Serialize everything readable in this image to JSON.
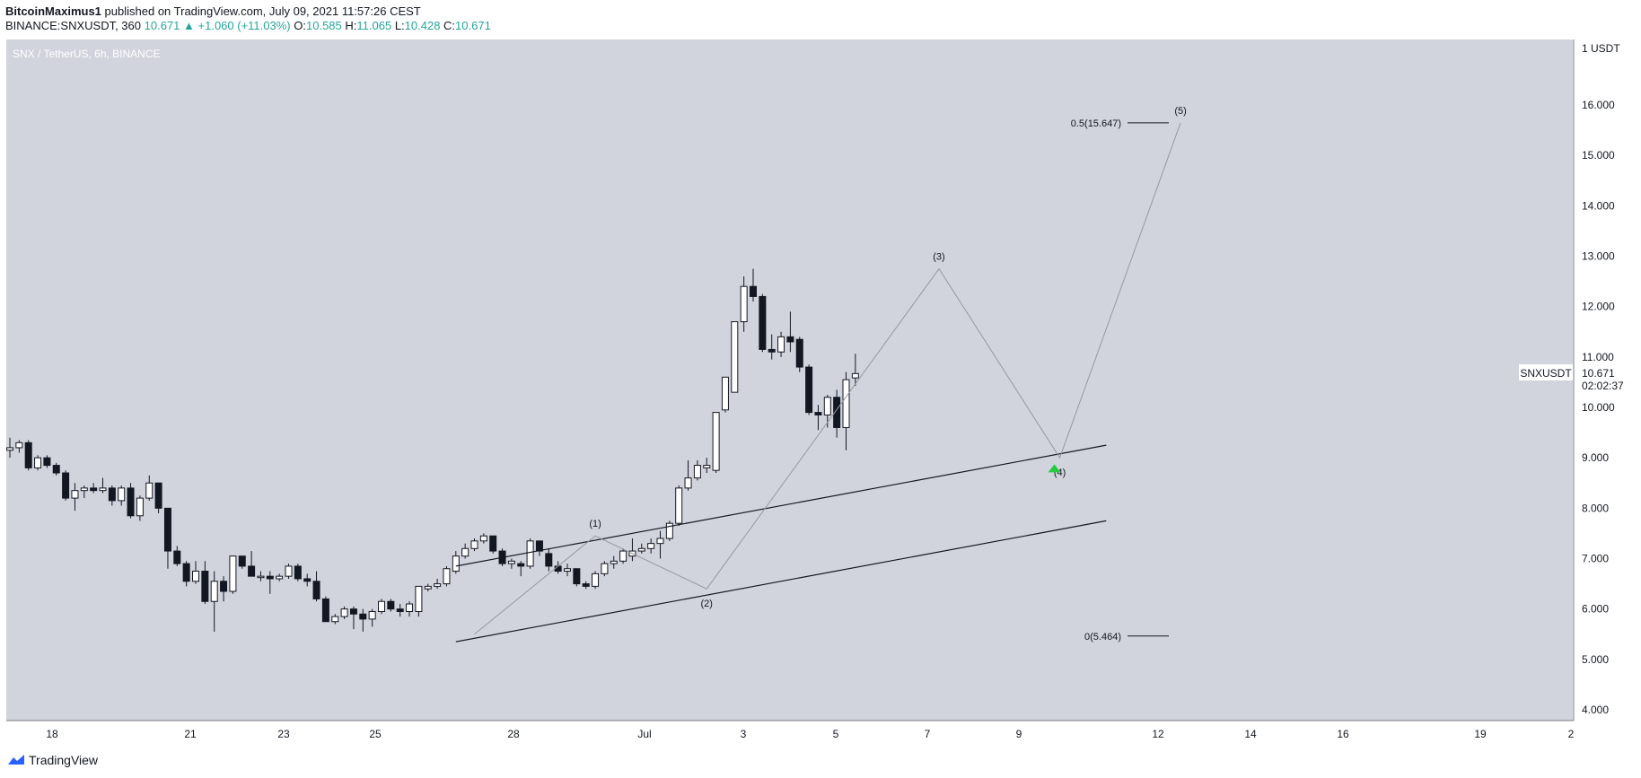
{
  "header": {
    "author": "BitcoinMaximus1",
    "published": "published on TradingView.com, July 09, 2021 11:57:26 CEST",
    "symbol": "BINANCE:SNXUSDT, 360",
    "last": "10.671",
    "change_arrow": "▲",
    "change": "+1.060 (+11.03%)",
    "o_label": "O:",
    "o": "10.585",
    "h_label": "H:",
    "h": "11.065",
    "l_label": "L:",
    "l": "10.428",
    "c_label": "C:",
    "c": "10.671"
  },
  "pane_title": "SNX / TetherUS, 6h, BINANCE",
  "price_tag": {
    "symbol": "SNXUSDT",
    "price": "10.671",
    "countdown": "02:02:37"
  },
  "footer": {
    "brand": "TradingView"
  },
  "colors": {
    "background": "#d1d4dc",
    "bull_body": "#ffffff",
    "bear_body": "#131722",
    "wick": "#131722",
    "arrow": "#26c940"
  },
  "chart_data": {
    "type": "candlestick",
    "symbol": "SNXUSDT",
    "interval": "6h",
    "y_axis_unit": "USDT",
    "y_axis": {
      "min": 4.0,
      "max": 16.0,
      "ticks": [
        "1 USDT",
        "16.000",
        "15.000",
        "14.000",
        "13.000",
        "12.000",
        "11.000",
        "10.000",
        "9.000",
        "8.000",
        "7.000",
        "6.000",
        "5.000",
        "4.000"
      ]
    },
    "x_ticks": [
      "18",
      "21",
      "23",
      "25",
      "28",
      "Jul",
      "3",
      "5",
      "7",
      "9",
      "12",
      "14",
      "16",
      "19",
      "2"
    ],
    "candles": [
      {
        "o": 9.15,
        "h": 9.4,
        "l": 9.0,
        "c": 9.2
      },
      {
        "o": 9.2,
        "h": 9.35,
        "l": 9.1,
        "c": 9.3
      },
      {
        "o": 9.3,
        "h": 9.35,
        "l": 8.75,
        "c": 8.8
      },
      {
        "o": 8.8,
        "h": 9.05,
        "l": 8.75,
        "c": 9.0
      },
      {
        "o": 9.0,
        "h": 9.05,
        "l": 8.8,
        "c": 8.85
      },
      {
        "o": 8.85,
        "h": 8.9,
        "l": 8.65,
        "c": 8.7
      },
      {
        "o": 8.7,
        "h": 8.75,
        "l": 8.15,
        "c": 8.2
      },
      {
        "o": 8.2,
        "h": 8.5,
        "l": 7.95,
        "c": 8.35
      },
      {
        "o": 8.35,
        "h": 8.45,
        "l": 8.2,
        "c": 8.4
      },
      {
        "o": 8.4,
        "h": 8.5,
        "l": 8.3,
        "c": 8.35
      },
      {
        "o": 8.35,
        "h": 8.6,
        "l": 8.3,
        "c": 8.4
      },
      {
        "o": 8.4,
        "h": 8.45,
        "l": 8.05,
        "c": 8.15
      },
      {
        "o": 8.15,
        "h": 8.45,
        "l": 8.05,
        "c": 8.4
      },
      {
        "o": 8.4,
        "h": 8.5,
        "l": 7.8,
        "c": 7.85
      },
      {
        "o": 7.85,
        "h": 8.25,
        "l": 7.75,
        "c": 8.2
      },
      {
        "o": 8.2,
        "h": 8.65,
        "l": 8.15,
        "c": 8.5
      },
      {
        "o": 8.5,
        "h": 8.5,
        "l": 7.9,
        "c": 8.0
      },
      {
        "o": 8.0,
        "h": 8.0,
        "l": 6.8,
        "c": 7.15
      },
      {
        "o": 7.15,
        "h": 7.25,
        "l": 6.85,
        "c": 6.9
      },
      {
        "o": 6.9,
        "h": 6.95,
        "l": 6.45,
        "c": 6.55
      },
      {
        "o": 6.55,
        "h": 6.95,
        "l": 6.5,
        "c": 6.75
      },
      {
        "o": 6.75,
        "h": 6.95,
        "l": 6.1,
        "c": 6.15
      },
      {
        "o": 6.15,
        "h": 6.75,
        "l": 5.55,
        "c": 6.55
      },
      {
        "o": 6.55,
        "h": 6.65,
        "l": 6.15,
        "c": 6.35
      },
      {
        "o": 6.35,
        "h": 7.05,
        "l": 6.3,
        "c": 7.05
      },
      {
        "o": 7.05,
        "h": 7.05,
        "l": 6.8,
        "c": 6.85
      },
      {
        "o": 6.85,
        "h": 7.15,
        "l": 6.65,
        "c": 6.65
      },
      {
        "o": 6.65,
        "h": 6.75,
        "l": 6.55,
        "c": 6.65
      },
      {
        "o": 6.65,
        "h": 6.75,
        "l": 6.3,
        "c": 6.6
      },
      {
        "o": 6.6,
        "h": 6.7,
        "l": 6.55,
        "c": 6.65
      },
      {
        "o": 6.65,
        "h": 6.9,
        "l": 6.6,
        "c": 6.85
      },
      {
        "o": 6.85,
        "h": 6.9,
        "l": 6.55,
        "c": 6.6
      },
      {
        "o": 6.6,
        "h": 6.7,
        "l": 6.45,
        "c": 6.55
      },
      {
        "o": 6.55,
        "h": 6.75,
        "l": 6.15,
        "c": 6.2
      },
      {
        "o": 6.2,
        "h": 6.25,
        "l": 5.75,
        "c": 5.75
      },
      {
        "o": 5.75,
        "h": 5.9,
        "l": 5.7,
        "c": 5.85
      },
      {
        "o": 5.85,
        "h": 6.05,
        "l": 5.8,
        "c": 6.0
      },
      {
        "o": 6.0,
        "h": 6.05,
        "l": 5.6,
        "c": 5.9
      },
      {
        "o": 5.9,
        "h": 6.0,
        "l": 5.55,
        "c": 5.8
      },
      {
        "o": 5.8,
        "h": 6.0,
        "l": 5.65,
        "c": 5.95
      },
      {
        "o": 5.95,
        "h": 6.2,
        "l": 5.9,
        "c": 6.15
      },
      {
        "o": 6.15,
        "h": 6.2,
        "l": 5.95,
        "c": 6.0
      },
      {
        "o": 6.0,
        "h": 6.1,
        "l": 5.85,
        "c": 5.95
      },
      {
        "o": 5.95,
        "h": 6.15,
        "l": 5.85,
        "c": 6.1
      },
      {
        "o": 5.95,
        "h": 6.45,
        "l": 5.85,
        "c": 6.45
      },
      {
        "o": 6.4,
        "h": 6.5,
        "l": 6.35,
        "c": 6.45
      },
      {
        "o": 6.45,
        "h": 6.6,
        "l": 6.4,
        "c": 6.5
      },
      {
        "o": 6.5,
        "h": 6.85,
        "l": 6.45,
        "c": 6.8
      },
      {
        "o": 6.75,
        "h": 7.15,
        "l": 6.7,
        "c": 7.05
      },
      {
        "o": 7.05,
        "h": 7.3,
        "l": 7.0,
        "c": 7.2
      },
      {
        "o": 7.2,
        "h": 7.4,
        "l": 7.15,
        "c": 7.35
      },
      {
        "o": 7.35,
        "h": 7.5,
        "l": 7.3,
        "c": 7.45
      },
      {
        "o": 7.45,
        "h": 7.45,
        "l": 7.1,
        "c": 7.15
      },
      {
        "o": 7.15,
        "h": 7.2,
        "l": 6.85,
        "c": 6.9
      },
      {
        "o": 6.9,
        "h": 7.0,
        "l": 6.8,
        "c": 6.95
      },
      {
        "o": 6.9,
        "h": 6.95,
        "l": 6.65,
        "c": 6.85
      },
      {
        "o": 6.85,
        "h": 7.4,
        "l": 6.8,
        "c": 7.35
      },
      {
        "o": 7.35,
        "h": 7.35,
        "l": 7.05,
        "c": 7.15
      },
      {
        "o": 7.1,
        "h": 7.2,
        "l": 6.75,
        "c": 6.85
      },
      {
        "o": 6.85,
        "h": 6.95,
        "l": 6.7,
        "c": 6.75
      },
      {
        "o": 6.75,
        "h": 6.9,
        "l": 6.65,
        "c": 6.8
      },
      {
        "o": 6.8,
        "h": 6.8,
        "l": 6.45,
        "c": 6.5
      },
      {
        "o": 6.5,
        "h": 6.55,
        "l": 6.4,
        "c": 6.45
      },
      {
        "o": 6.45,
        "h": 6.75,
        "l": 6.4,
        "c": 6.7
      },
      {
        "o": 6.7,
        "h": 6.95,
        "l": 6.65,
        "c": 6.9
      },
      {
        "o": 6.9,
        "h": 7.05,
        "l": 6.8,
        "c": 6.95
      },
      {
        "o": 6.95,
        "h": 7.2,
        "l": 6.9,
        "c": 7.15
      },
      {
        "o": 7.05,
        "h": 7.4,
        "l": 6.95,
        "c": 7.15
      },
      {
        "o": 7.15,
        "h": 7.3,
        "l": 7.1,
        "c": 7.2
      },
      {
        "o": 7.2,
        "h": 7.4,
        "l": 7.1,
        "c": 7.3
      },
      {
        "o": 7.3,
        "h": 7.55,
        "l": 7.0,
        "c": 7.4
      },
      {
        "o": 7.4,
        "h": 7.75,
        "l": 7.35,
        "c": 7.7
      },
      {
        "o": 7.7,
        "h": 8.45,
        "l": 7.65,
        "c": 8.4
      },
      {
        "o": 8.4,
        "h": 8.95,
        "l": 8.35,
        "c": 8.6
      },
      {
        "o": 8.6,
        "h": 8.95,
        "l": 8.55,
        "c": 8.85
      },
      {
        "o": 8.8,
        "h": 9.0,
        "l": 8.7,
        "c": 8.85
      },
      {
        "o": 8.75,
        "h": 9.9,
        "l": 8.7,
        "c": 9.9
      },
      {
        "o": 9.95,
        "h": 10.5,
        "l": 9.9,
        "c": 10.6
      },
      {
        "o": 10.3,
        "h": 11.7,
        "l": 10.3,
        "c": 11.7
      },
      {
        "o": 11.7,
        "h": 12.6,
        "l": 11.5,
        "c": 12.4
      },
      {
        "o": 12.4,
        "h": 12.75,
        "l": 12.1,
        "c": 12.2
      },
      {
        "o": 12.2,
        "h": 12.25,
        "l": 11.1,
        "c": 11.15
      },
      {
        "o": 11.15,
        "h": 11.45,
        "l": 10.95,
        "c": 11.1
      },
      {
        "o": 11.1,
        "h": 11.5,
        "l": 11.0,
        "c": 11.4
      },
      {
        "o": 11.4,
        "h": 11.9,
        "l": 11.1,
        "c": 11.3
      },
      {
        "o": 11.35,
        "h": 11.4,
        "l": 10.7,
        "c": 10.8
      },
      {
        "o": 10.8,
        "h": 10.85,
        "l": 9.85,
        "c": 9.9
      },
      {
        "o": 9.9,
        "h": 10.05,
        "l": 9.55,
        "c": 9.85
      },
      {
        "o": 9.85,
        "h": 10.25,
        "l": 9.6,
        "c": 10.2
      },
      {
        "o": 10.2,
        "h": 10.35,
        "l": 9.4,
        "c": 9.6
      },
      {
        "o": 9.6,
        "h": 10.7,
        "l": 9.15,
        "c": 10.55
      },
      {
        "o": 10.585,
        "h": 11.065,
        "l": 10.428,
        "c": 10.671
      }
    ],
    "channel_lines": [
      {
        "name": "upper",
        "x": [
          48,
          118
        ],
        "y": [
          6.85,
          9.25
        ]
      },
      {
        "name": "lower",
        "x": [
          48,
          118
        ],
        "y": [
          5.35,
          7.75
        ]
      }
    ],
    "wave_path": {
      "x": [
        50,
        63,
        75,
        100,
        113,
        126
      ],
      "y": [
        5.5,
        7.45,
        6.4,
        12.75,
        9.0,
        15.647
      ]
    },
    "wave_labels": [
      {
        "text": "(1)",
        "x": 63,
        "y": 7.45,
        "pos": "above"
      },
      {
        "text": "(2)",
        "x": 75,
        "y": 6.4,
        "pos": "below"
      },
      {
        "text": "(3)",
        "x": 100,
        "y": 12.75,
        "pos": "above"
      },
      {
        "text": "(4)",
        "x": 113,
        "y": 9.0,
        "pos": "below"
      },
      {
        "text": "(5)",
        "x": 126,
        "y": 15.647,
        "pos": "above"
      }
    ],
    "fib_levels": [
      {
        "label": "0.5(15.647)",
        "value": 15.647
      },
      {
        "label": "0(5.464)",
        "value": 5.464
      }
    ],
    "up_arrow": {
      "x": 113,
      "y": 8.8
    }
  }
}
